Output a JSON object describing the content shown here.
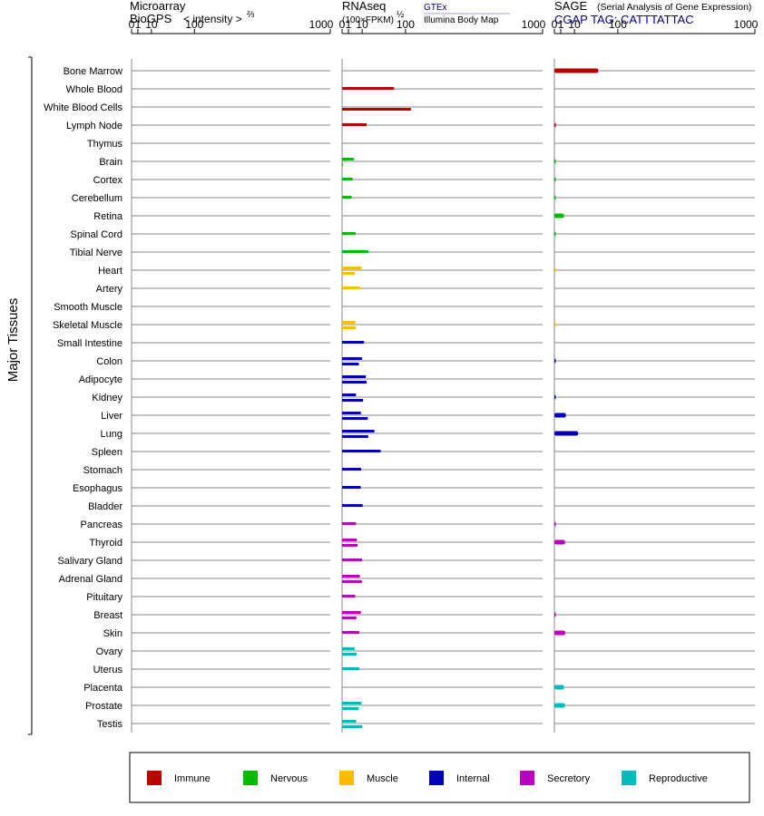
{
  "panels": {
    "microarray": {
      "line1": "Microarray",
      "line2_prefix": "BioGPS",
      "line2_suffix": "< intensity >",
      "exponent": "⅔"
    },
    "rnaseq": {
      "line1": "RNAseq",
      "line2": "(100×FPKM)",
      "exponent": "½",
      "source_top": "GTEx",
      "source_bottom": "Illumina Body Map"
    },
    "sage": {
      "line1_main": "SAGE",
      "line1_sub": "(Serial Analysis of Gene Expression)",
      "line2": "CGAP TAG: CATTTATTAC"
    }
  },
  "y_axis_label": "Major Tissues",
  "colors": {
    "Immune": "#bb0000",
    "Nervous": "#00bb00",
    "Muscle": "#ffbb00",
    "Internal": "#0000bb",
    "Secretory": "#bb00bb",
    "Reproductive": "#00bbbb"
  },
  "chart_data": {
    "type": "bar",
    "orientation": "horizontal",
    "axis_ticks": [
      0,
      1,
      10,
      100,
      1000
    ],
    "axis_range": [
      0,
      1000
    ],
    "scale": "power",
    "legend": [
      "Immune",
      "Nervous",
      "Muscle",
      "Internal",
      "Secretory",
      "Reproductive"
    ],
    "legend_placement": "bottom",
    "tissues": [
      {
        "name": "Bone Marrow",
        "system": "Immune",
        "microarray": null,
        "gtex": null,
        "bodymap": null,
        "sage": 48
      },
      {
        "name": "Whole Blood",
        "system": "Immune",
        "microarray": null,
        "gtex": 67,
        "bodymap": null,
        "sage": null
      },
      {
        "name": "White Blood Cells",
        "system": "Immune",
        "microarray": null,
        "gtex": null,
        "bodymap": 118,
        "sage": null
      },
      {
        "name": "Lymph Node",
        "system": "Immune",
        "microarray": null,
        "gtex": 15,
        "bodymap": null,
        "sage": 0.002
      },
      {
        "name": "Thymus",
        "system": "Immune",
        "microarray": null,
        "gtex": null,
        "bodymap": null,
        "sage": null
      },
      {
        "name": "Brain",
        "system": "Nervous",
        "microarray": null,
        "gtex": 3.5,
        "bodymap": 0.02,
        "sage": 0.002
      },
      {
        "name": "Cortex",
        "system": "Nervous",
        "microarray": null,
        "gtex": 2.8,
        "bodymap": null,
        "sage": 0.002
      },
      {
        "name": "Cerebellum",
        "system": "Nervous",
        "microarray": null,
        "gtex": 2.3,
        "bodymap": null,
        "sage": 0.002
      },
      {
        "name": "Retina",
        "system": "Nervous",
        "microarray": null,
        "gtex": null,
        "bodymap": null,
        "sage": 2.3
      },
      {
        "name": "Spinal Cord",
        "system": "Nervous",
        "microarray": null,
        "gtex": 4.5,
        "bodymap": null,
        "sage": 0.002
      },
      {
        "name": "Tibial Nerve",
        "system": "Nervous",
        "microarray": null,
        "gtex": 17,
        "bodymap": null,
        "sage": null
      },
      {
        "name": "Heart",
        "system": "Muscle",
        "microarray": null,
        "gtex": 9.5,
        "bodymap": 4,
        "sage": 0.002
      },
      {
        "name": "Artery",
        "system": "Muscle",
        "microarray": null,
        "gtex": 8,
        "bodymap": null,
        "sage": null
      },
      {
        "name": "Smooth Muscle",
        "system": "Muscle",
        "microarray": null,
        "gtex": null,
        "bodymap": null,
        "sage": null
      },
      {
        "name": "Skeletal Muscle",
        "system": "Muscle",
        "microarray": null,
        "gtex": 4.3,
        "bodymap": 4.8,
        "sage": 0.002
      },
      {
        "name": "Small Intestine",
        "system": "Internal",
        "microarray": null,
        "gtex": 12,
        "bodymap": null,
        "sage": null
      },
      {
        "name": "Colon",
        "system": "Internal",
        "microarray": null,
        "gtex": 9.8,
        "bodymap": 7,
        "sage": 0.002
      },
      {
        "name": "Adipocyte",
        "system": "Internal",
        "microarray": null,
        "gtex": 14,
        "bodymap": 15,
        "sage": null
      },
      {
        "name": "Kidney",
        "system": "Internal",
        "microarray": null,
        "gtex": 4.8,
        "bodymap": 11,
        "sage": 0.002
      },
      {
        "name": "Liver",
        "system": "Internal",
        "microarray": null,
        "gtex": 8.8,
        "bodymap": 16.5,
        "sage": 3.3
      },
      {
        "name": "Lung",
        "system": "Internal",
        "microarray": null,
        "gtex": 26,
        "bodymap": 17,
        "sage": 14
      },
      {
        "name": "Spleen",
        "system": "Internal",
        "microarray": null,
        "gtex": 37,
        "bodymap": null,
        "sage": null
      },
      {
        "name": "Stomach",
        "system": "Internal",
        "microarray": null,
        "gtex": 9,
        "bodymap": null,
        "sage": null
      },
      {
        "name": "Esophagus",
        "system": "Internal",
        "microarray": null,
        "gtex": 8.6,
        "bodymap": null,
        "sage": null
      },
      {
        "name": "Bladder",
        "system": "Internal",
        "microarray": null,
        "gtex": 10.5,
        "bodymap": null,
        "sage": null
      },
      {
        "name": "Pancreas",
        "system": "Secretory",
        "microarray": null,
        "gtex": 4.8,
        "bodymap": null,
        "sage": 0.002
      },
      {
        "name": "Thyroid",
        "system": "Secretory",
        "microarray": null,
        "gtex": 5.4,
        "bodymap": 5.9,
        "sage": 2.8
      },
      {
        "name": "Salivary Gland",
        "system": "Secretory",
        "microarray": null,
        "gtex": 9.9,
        "bodymap": null,
        "sage": null
      },
      {
        "name": "Adrenal Gland",
        "system": "Secretory",
        "microarray": null,
        "gtex": 7.9,
        "bodymap": 9.7,
        "sage": null
      },
      {
        "name": "Pituitary",
        "system": "Secretory",
        "microarray": null,
        "gtex": 4.3,
        "bodymap": null,
        "sage": null
      },
      {
        "name": "Breast",
        "system": "Secretory",
        "microarray": null,
        "gtex": 8.8,
        "bodymap": 5.1,
        "sage": 0.002
      },
      {
        "name": "Skin",
        "system": "Secretory",
        "microarray": null,
        "gtex": 7.3,
        "bodymap": null,
        "sage": 2.9
      },
      {
        "name": "Ovary",
        "system": "Reproductive",
        "microarray": null,
        "gtex": 3.9,
        "bodymap": 5.2,
        "sage": null
      },
      {
        "name": "Uterus",
        "system": "Reproductive",
        "microarray": null,
        "gtex": 7.3,
        "bodymap": null,
        "sage": null
      },
      {
        "name": "Placenta",
        "system": "Reproductive",
        "microarray": null,
        "gtex": null,
        "bodymap": null,
        "sage": 2.3
      },
      {
        "name": "Prostate",
        "system": "Reproductive",
        "microarray": null,
        "gtex": 9.3,
        "bodymap": 6.9,
        "sage": 2.8
      },
      {
        "name": "Testis",
        "system": "Reproductive",
        "microarray": null,
        "gtex": 5,
        "bodymap": 10,
        "sage": null
      }
    ]
  }
}
